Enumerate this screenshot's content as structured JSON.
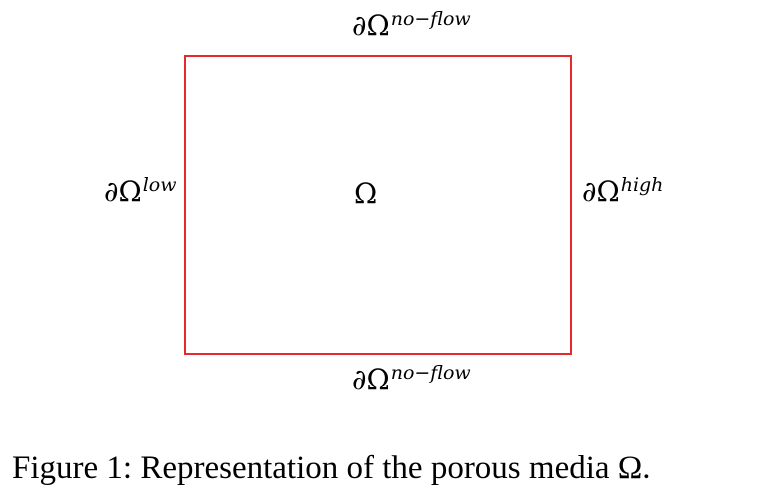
{
  "diagram": {
    "boundaries": {
      "top": {
        "symbol": "∂Ω",
        "superscript": "no−flow"
      },
      "bottom": {
        "symbol": "∂Ω",
        "superscript": "no−flow"
      },
      "left": {
        "symbol": "∂Ω",
        "superscript": "low"
      },
      "right": {
        "symbol": "∂Ω",
        "superscript": "high"
      }
    },
    "domain_label": "Ω",
    "border_color": "#e8292b"
  },
  "caption": "Figure 1: Representation of the porous media Ω."
}
